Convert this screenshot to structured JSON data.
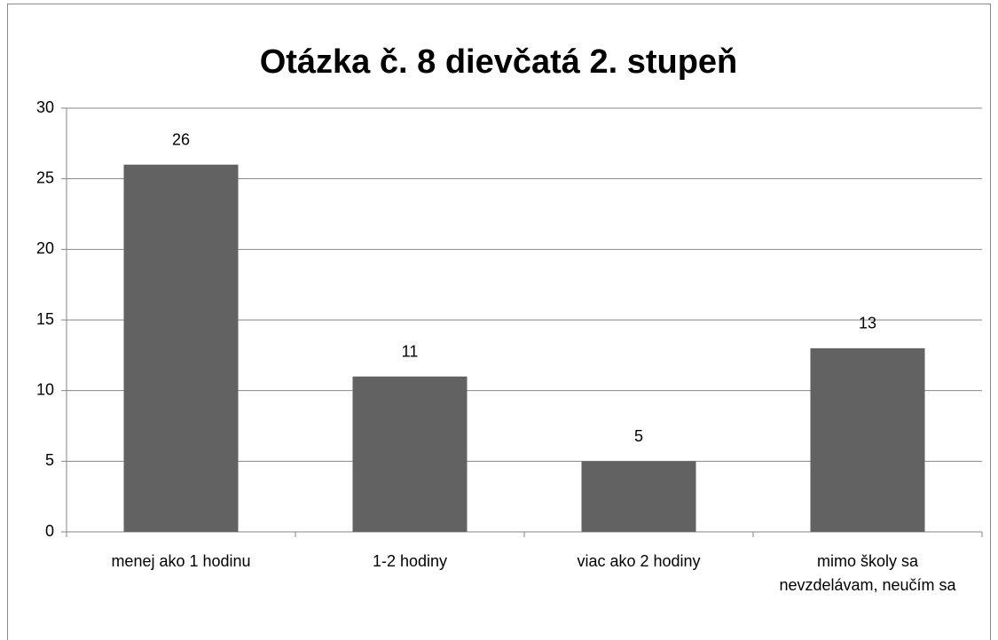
{
  "chart_data": {
    "type": "bar",
    "title": "Otázka č. 8 dievčatá 2. stupeň",
    "categories": [
      "menej ako 1 hodinu",
      "1-2 hodiny",
      "viac ako 2 hodiny",
      "mimo školy sa nevzdelávam, neučím sa"
    ],
    "values": [
      26,
      11,
      5,
      13
    ],
    "color": "#626262",
    "ylim": [
      0,
      30
    ],
    "yticks": [
      0,
      5,
      10,
      15,
      20,
      25,
      30
    ],
    "grid": true,
    "data_labels": true
  }
}
